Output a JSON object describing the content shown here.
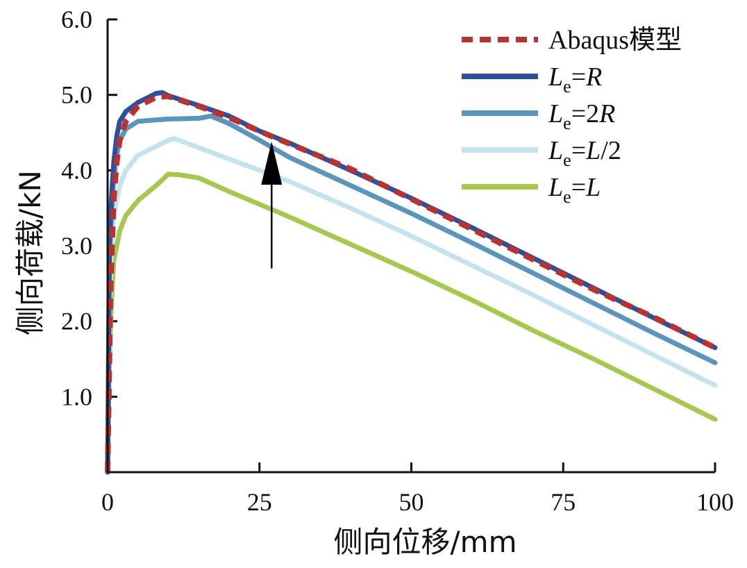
{
  "chart_data": {
    "type": "line",
    "xlabel": "侧向位移/mm",
    "ylabel": "侧向荷载/kN",
    "xlim": [
      0,
      100
    ],
    "ylim": [
      0,
      6.0
    ],
    "x_ticks": [
      "0",
      "25",
      "50",
      "75",
      "100"
    ],
    "y_ticks": [
      "1.0",
      "2.0",
      "3.0",
      "4.0",
      "5.0",
      "6.0"
    ],
    "grid": false,
    "legend_position": "top-right",
    "series": [
      {
        "name": "Abaqus模型",
        "style": "dashed",
        "color": "#b83232",
        "x": [
          0,
          0.5,
          1,
          1.5,
          2,
          3,
          5,
          8,
          10,
          15,
          20,
          25,
          30,
          40,
          50,
          60,
          70,
          80,
          90,
          100
        ],
        "y": [
          0,
          2.5,
          3.6,
          4.1,
          4.4,
          4.65,
          4.85,
          4.97,
          4.98,
          4.85,
          4.7,
          4.52,
          4.35,
          4.02,
          3.62,
          3.22,
          2.82,
          2.42,
          2.05,
          1.65
        ]
      },
      {
        "name": "Le=R",
        "color": "#2f4f9a",
        "x": [
          0,
          0.3,
          0.6,
          1,
          1.5,
          2,
          3,
          5,
          8,
          9,
          10,
          15,
          20,
          25,
          30,
          40,
          50,
          60,
          70,
          80,
          90,
          100
        ],
        "y": [
          0,
          3.0,
          3.6,
          4.1,
          4.45,
          4.65,
          4.78,
          4.9,
          5.02,
          5.03,
          4.99,
          4.86,
          4.72,
          4.52,
          4.36,
          4.0,
          3.63,
          3.24,
          2.84,
          2.44,
          2.04,
          1.65
        ]
      },
      {
        "name": "Le=2R",
        "color": "#5b95bb",
        "x": [
          0,
          0.3,
          0.6,
          1,
          1.5,
          2,
          3,
          5,
          10,
          15,
          17,
          20,
          25,
          30,
          40,
          50,
          60,
          70,
          80,
          90,
          100
        ],
        "y": [
          0,
          2.8,
          3.4,
          3.9,
          4.2,
          4.4,
          4.55,
          4.65,
          4.68,
          4.69,
          4.72,
          4.62,
          4.4,
          4.17,
          3.8,
          3.43,
          3.04,
          2.64,
          2.24,
          1.84,
          1.45
        ]
      },
      {
        "name": "Le=L/2",
        "color": "#c4e3ec",
        "x": [
          0,
          0.3,
          0.6,
          1,
          2,
          3,
          5,
          8,
          10,
          11,
          15,
          20,
          25,
          30,
          40,
          50,
          60,
          70,
          80,
          90,
          100
        ],
        "y": [
          0,
          2.2,
          2.9,
          3.4,
          3.8,
          4.0,
          4.2,
          4.32,
          4.4,
          4.42,
          4.3,
          4.15,
          4.0,
          3.85,
          3.5,
          3.13,
          2.74,
          2.35,
          1.95,
          1.55,
          1.15
        ]
      },
      {
        "name": "Le=L",
        "color": "#a6c84f",
        "x": [
          0,
          0.3,
          0.6,
          1,
          2,
          3,
          5,
          8,
          10,
          12,
          15,
          20,
          25,
          30,
          40,
          50,
          60,
          70,
          80,
          90,
          100
        ],
        "y": [
          0,
          1.5,
          2.2,
          2.8,
          3.2,
          3.4,
          3.6,
          3.8,
          3.95,
          3.94,
          3.9,
          3.72,
          3.55,
          3.38,
          3.02,
          2.66,
          2.28,
          1.88,
          1.5,
          1.1,
          0.7
        ]
      }
    ],
    "annotation": {
      "type": "arrow",
      "x": 27,
      "y_from": 2.7,
      "y_to": 4.38
    }
  }
}
